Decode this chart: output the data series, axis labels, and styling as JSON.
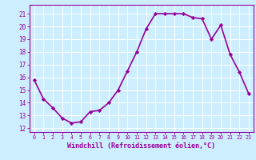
{
  "x": [
    0,
    1,
    2,
    3,
    4,
    5,
    6,
    7,
    8,
    9,
    10,
    11,
    12,
    13,
    14,
    15,
    16,
    17,
    18,
    19,
    20,
    21,
    22,
    23
  ],
  "y": [
    15.8,
    14.3,
    13.6,
    12.8,
    12.4,
    12.5,
    13.3,
    13.4,
    14.0,
    15.0,
    16.5,
    18.0,
    19.8,
    21.0,
    21.0,
    21.0,
    21.0,
    20.7,
    20.6,
    19.0,
    20.1,
    17.8,
    16.4,
    14.7
  ],
  "xlim": [
    -0.5,
    23.5
  ],
  "ylim": [
    11.7,
    21.7
  ],
  "yticks": [
    12,
    13,
    14,
    15,
    16,
    17,
    18,
    19,
    20,
    21
  ],
  "xticks": [
    0,
    1,
    2,
    3,
    4,
    5,
    6,
    7,
    8,
    9,
    10,
    11,
    12,
    13,
    14,
    15,
    16,
    17,
    18,
    19,
    20,
    21,
    22,
    23
  ],
  "xlabel": "Windchill (Refroidissement éolien,°C)",
  "line_color": "#990099",
  "marker": "D",
  "marker_size": 2.2,
  "background_color": "#cceeff",
  "grid_color": "#ffffff",
  "tick_color": "#990099",
  "label_color": "#990099",
  "axis_color": "#990099",
  "line_width": 1.2
}
